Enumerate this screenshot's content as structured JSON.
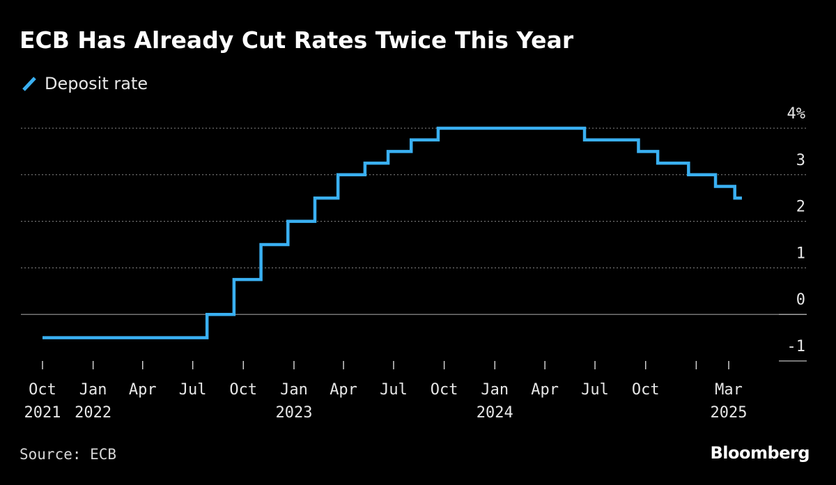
{
  "title": "ECB Has Already Cut Rates Twice This Year",
  "source": "Source: ECB",
  "brand": "Bloomberg",
  "colors": {
    "series": "#3ab0f2",
    "grid": "#8a8a8a",
    "background": "#000000",
    "text": "#e6e6e6"
  },
  "chart_data": {
    "type": "line",
    "step": true,
    "series": [
      {
        "name": "Deposit rate",
        "x": [
          "2021-10-01",
          "2022-07-27",
          "2022-09-14",
          "2022-11-02",
          "2022-12-21",
          "2023-02-08",
          "2023-03-22",
          "2023-05-10",
          "2023-06-21",
          "2023-08-02",
          "2023-09-20",
          "2024-06-12",
          "2024-09-18",
          "2024-10-23",
          "2024-12-18",
          "2025-02-05",
          "2025-03-12",
          "2025-03-25"
        ],
        "values": [
          -0.5,
          0,
          0.75,
          1.5,
          2,
          2.5,
          3,
          3.25,
          3.5,
          3.75,
          4,
          3.75,
          3.5,
          3.25,
          3,
          2.75,
          2.5,
          2.5
        ]
      }
    ],
    "ylim": [
      -1,
      4
    ],
    "yticks": [
      {
        "value": 4,
        "label": "4%"
      },
      {
        "value": 3,
        "label": "3"
      },
      {
        "value": 2,
        "label": "2"
      },
      {
        "value": 1,
        "label": "1"
      },
      {
        "value": 0,
        "label": "0"
      },
      {
        "value": -1,
        "label": "-1"
      }
    ],
    "xlim": [
      "2021-10-01",
      "2025-04-01"
    ],
    "xticks": [
      {
        "date": "2021-10-01",
        "label": "Oct",
        "year": "2021"
      },
      {
        "date": "2022-01-01",
        "label": "Jan",
        "year": "2022"
      },
      {
        "date": "2022-04-01",
        "label": "Apr"
      },
      {
        "date": "2022-07-01",
        "label": "Jul"
      },
      {
        "date": "2022-10-01",
        "label": "Oct"
      },
      {
        "date": "2023-01-01",
        "label": "Jan",
        "year": "2023"
      },
      {
        "date": "2023-04-01",
        "label": "Apr"
      },
      {
        "date": "2023-07-01",
        "label": "Jul"
      },
      {
        "date": "2023-10-01",
        "label": "Oct"
      },
      {
        "date": "2024-01-01",
        "label": "Jan",
        "year": "2024"
      },
      {
        "date": "2024-04-01",
        "label": "Apr"
      },
      {
        "date": "2024-07-01",
        "label": "Jul"
      },
      {
        "date": "2024-10-01",
        "label": "Oct"
      },
      {
        "date": "2025-01-01",
        "label": ""
      },
      {
        "date": "2025-03-01",
        "label": "Mar",
        "year": "2025"
      }
    ],
    "grid": true,
    "legend": "top-left"
  }
}
